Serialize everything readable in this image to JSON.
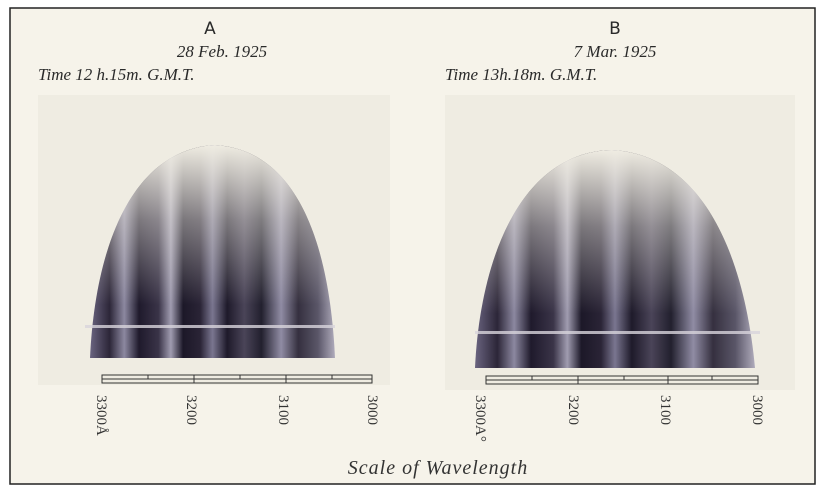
{
  "panels": [
    {
      "label": "A",
      "date": "28 Feb. 1925",
      "time": "Time 12 h.15m. G.M.T.",
      "scale_labels": [
        "3300Å",
        "3200",
        "3100",
        "3000"
      ]
    },
    {
      "label": "B",
      "date": "7 Mar. 1925",
      "time": "Time 13h.18m. G.M.T.",
      "scale_labels": [
        "3300A°",
        "3200",
        "3100",
        "3000"
      ]
    }
  ],
  "caption": "Scale of Wavelength"
}
